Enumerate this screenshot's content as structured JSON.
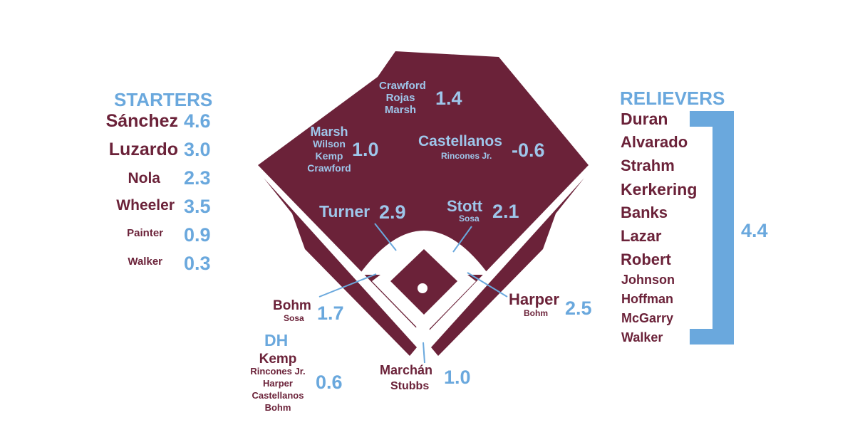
{
  "colors": {
    "maroon": "#6b2239",
    "blue": "#6aa8dd",
    "background": "#ffffff"
  },
  "starters": {
    "heading": "STARTERS",
    "rows": [
      {
        "name": "Sánchez",
        "value": "4.6"
      },
      {
        "name": "Luzardo",
        "value": "3.0"
      },
      {
        "name": "Nola",
        "value": "2.3"
      },
      {
        "name": "Wheeler",
        "value": "3.5"
      },
      {
        "name": "Painter",
        "value": "0.9"
      },
      {
        "name": "Walker",
        "value": "0.3"
      }
    ]
  },
  "relievers": {
    "heading": "RELIEVERS",
    "names": [
      "Duran",
      "Alvarado",
      "Strahm",
      "Kerkering",
      "Banks",
      "Lazar",
      "Robert",
      "Johnson",
      "Hoffman",
      "McGarry",
      "Walker"
    ],
    "value": "4.4"
  },
  "positions": {
    "center_field": {
      "players": [
        "Crawford",
        "Rojas",
        "Marsh"
      ],
      "value": "1.4"
    },
    "left_field": {
      "players": [
        "Marsh",
        "Wilson",
        "Kemp",
        "Crawford"
      ],
      "value": "1.0"
    },
    "right_field": {
      "primary": "Castellanos",
      "backup": "Rincones Jr.",
      "value": "-0.6"
    },
    "shortstop": {
      "primary": "Turner",
      "value": "2.9"
    },
    "second_base": {
      "primary": "Stott",
      "backup": "Sosa",
      "value": "2.1"
    },
    "third_base": {
      "primary": "Bohm",
      "backup": "Sosa",
      "value": "1.7"
    },
    "first_base": {
      "primary": "Harper",
      "backup": "Bohm",
      "value": "2.5"
    },
    "catcher": {
      "primary": "Marchán",
      "backup": "Stubbs",
      "value": "1.0"
    }
  },
  "dh": {
    "heading": "DH",
    "primary": "Kemp",
    "backups": [
      "Rincones Jr.",
      "Harper",
      "Castellanos",
      "Bohm"
    ],
    "value": "0.6"
  }
}
